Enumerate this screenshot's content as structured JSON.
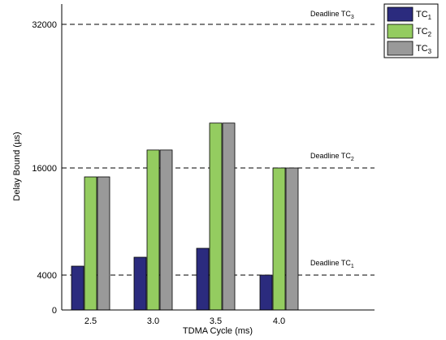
{
  "chart_data": {
    "type": "bar",
    "xlabel": "TDMA Cycle (ms)",
    "ylabel": "Delay Bound (µs)",
    "categories": [
      "2.5",
      "3.0",
      "3.5",
      "4.0"
    ],
    "y_ticks": [
      "0",
      "4000",
      "16000",
      "32000"
    ],
    "ylim": [
      0,
      35000
    ],
    "grid": false,
    "legend_position": "top-right outside",
    "series": [
      {
        "name": "TC",
        "sub": "1",
        "color": "#2b2b7e",
        "values": [
          5000,
          6000,
          7000,
          4000
        ]
      },
      {
        "name": "TC",
        "sub": "2",
        "color": "#94cc60",
        "values": [
          15000,
          18000,
          21000,
          16000
        ]
      },
      {
        "name": "TC",
        "sub": "3",
        "color": "#999999",
        "values": [
          15000,
          18000,
          21000,
          16000
        ]
      }
    ],
    "deadlines": [
      {
        "label": "Deadline TC",
        "sub": "1",
        "value": 4000
      },
      {
        "label": "Deadline TC",
        "sub": "2",
        "value": 16000
      },
      {
        "label": "Deadline TC",
        "sub": "3",
        "value": 32000
      }
    ]
  }
}
